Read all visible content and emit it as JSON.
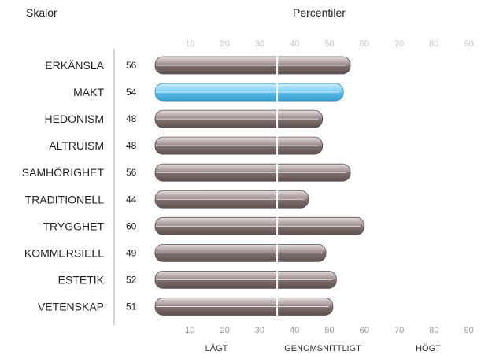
{
  "header": {
    "scales_label": "Skalor",
    "percentiles_label": "Percentiler"
  },
  "colors": {
    "bar_default": "#8a7a7a",
    "bar_highlight": "#5ab9e6",
    "axis_line": "#aaaaaa",
    "top_tick": "#c4c4c4",
    "bottom_tick": "#9a9a9a"
  },
  "chart_data": {
    "type": "bar",
    "orientation": "horizontal",
    "categories": [
      "ERKÄNSLA",
      "MAKT",
      "HEDONISM",
      "ALTRUISM",
      "SAMHÖRIGHET",
      "TRADITIONELL",
      "TRYGGHET",
      "KOMMERSIELL",
      "ESTETIK",
      "VETENSKAP"
    ],
    "values": [
      56,
      54,
      48,
      48,
      56,
      44,
      60,
      49,
      52,
      51
    ],
    "highlighted": "MAKT",
    "xlim": [
      0,
      100
    ],
    "xticks": [
      10,
      20,
      30,
      40,
      50,
      60,
      70,
      80,
      90
    ],
    "reference_line": 35,
    "bands": [
      "LÅGT",
      "GENOMSNITTLIGT",
      "HÖGT"
    ],
    "grid": false
  }
}
